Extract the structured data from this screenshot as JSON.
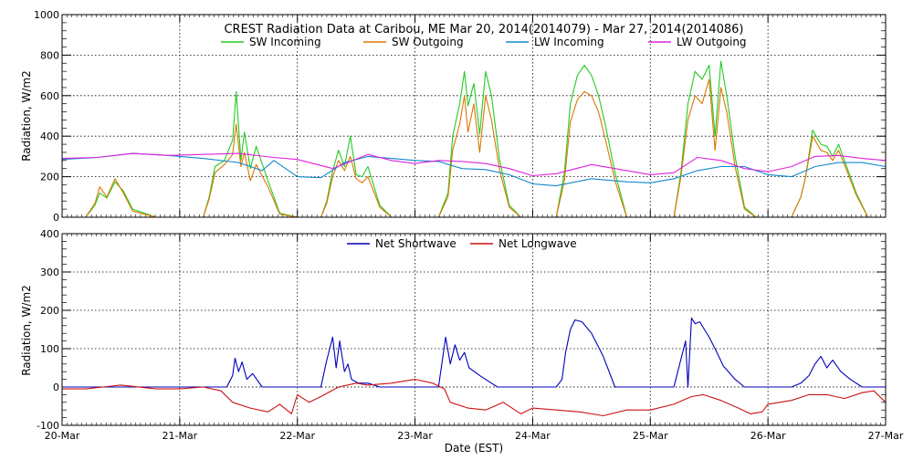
{
  "chart_data": [
    {
      "type": "line",
      "title": "CREST Radiation Data at Caribou, ME   Mar 20, 2014(2014079) - Mar 27, 2014(2014086)",
      "ylabel": "Radiation, W/m2",
      "xlim": [
        0,
        7
      ],
      "ylim": [
        0,
        1000
      ],
      "yticks": [
        0,
        200,
        400,
        600,
        800,
        1000
      ],
      "grid": true,
      "legend_placement": "top",
      "series": [
        {
          "name": "SW Incoming",
          "color": "#22cc22",
          "x": [
            0,
            0.2,
            0.28,
            0.32,
            0.38,
            0.45,
            0.52,
            0.6,
            0.8,
            1,
            1.2,
            1.25,
            1.3,
            1.38,
            1.45,
            1.48,
            1.52,
            1.55,
            1.6,
            1.65,
            1.75,
            1.85,
            2,
            2.2,
            2.25,
            2.3,
            2.35,
            2.4,
            2.45,
            2.5,
            2.55,
            2.6,
            2.7,
            2.8,
            3,
            3.2,
            3.28,
            3.32,
            3.38,
            3.42,
            3.45,
            3.5,
            3.55,
            3.6,
            3.65,
            3.72,
            3.8,
            3.9,
            4,
            4.2,
            4.27,
            4.32,
            4.38,
            4.44,
            4.5,
            4.56,
            4.62,
            4.7,
            4.8,
            5,
            5.2,
            5.26,
            5.32,
            5.38,
            5.44,
            5.5,
            5.55,
            5.6,
            5.65,
            5.72,
            5.8,
            5.9,
            6,
            6.2,
            6.28,
            6.32,
            6.38,
            6.45,
            6.5,
            6.55,
            6.6,
            6.65,
            6.75,
            6.85,
            7
          ],
          "y": [
            0,
            0,
            60,
            120,
            95,
            175,
            130,
            40,
            0,
            0,
            0,
            100,
            250,
            280,
            380,
            620,
            280,
            420,
            240,
            350,
            180,
            20,
            0,
            0,
            80,
            230,
            330,
            250,
            400,
            210,
            200,
            250,
            60,
            0,
            0,
            0,
            120,
            400,
            560,
            720,
            550,
            660,
            410,
            720,
            600,
            280,
            60,
            0,
            0,
            0,
            220,
            560,
            700,
            750,
            700,
            600,
            450,
            220,
            0,
            0,
            0,
            220,
            560,
            720,
            680,
            750,
            400,
            770,
            600,
            300,
            50,
            0,
            0,
            0,
            100,
            200,
            430,
            360,
            350,
            300,
            360,
            280,
            120,
            0,
            0
          ]
        },
        {
          "name": "SW Outgoing",
          "color": "#dd7700",
          "x": [
            0,
            0.2,
            0.28,
            0.32,
            0.38,
            0.45,
            0.52,
            0.6,
            0.8,
            1,
            1.2,
            1.25,
            1.3,
            1.38,
            1.45,
            1.48,
            1.52,
            1.55,
            1.6,
            1.65,
            1.75,
            1.85,
            2,
            2.2,
            2.25,
            2.3,
            2.35,
            2.4,
            2.45,
            2.5,
            2.55,
            2.6,
            2.7,
            2.8,
            3,
            3.2,
            3.28,
            3.32,
            3.38,
            3.42,
            3.45,
            3.5,
            3.55,
            3.6,
            3.65,
            3.72,
            3.8,
            3.9,
            4,
            4.2,
            4.27,
            4.32,
            4.38,
            4.44,
            4.5,
            4.56,
            4.62,
            4.7,
            4.8,
            5,
            5.2,
            5.26,
            5.32,
            5.38,
            5.44,
            5.5,
            5.55,
            5.6,
            5.65,
            5.72,
            5.8,
            5.9,
            6,
            6.2,
            6.28,
            6.32,
            6.38,
            6.45,
            6.5,
            6.55,
            6.6,
            6.65,
            6.75,
            6.85,
            7
          ],
          "y": [
            0,
            0,
            70,
            150,
            100,
            190,
            120,
            30,
            0,
            0,
            0,
            90,
            220,
            260,
            310,
            460,
            250,
            320,
            180,
            260,
            150,
            15,
            0,
            0,
            70,
            200,
            280,
            230,
            300,
            190,
            170,
            200,
            50,
            0,
            0,
            0,
            100,
            330,
            460,
            600,
            420,
            560,
            320,
            600,
            480,
            230,
            50,
            0,
            0,
            0,
            180,
            470,
            580,
            620,
            600,
            520,
            380,
            180,
            0,
            0,
            0,
            200,
            480,
            600,
            560,
            680,
            330,
            640,
            520,
            250,
            40,
            0,
            0,
            0,
            100,
            200,
            400,
            330,
            320,
            280,
            330,
            260,
            110,
            0,
            0
          ]
        },
        {
          "name": "LW Incoming",
          "color": "#1188cc",
          "x": [
            0,
            0.3,
            0.6,
            0.9,
            1.2,
            1.5,
            1.7,
            1.8,
            2,
            2.2,
            2.4,
            2.6,
            2.8,
            3,
            3.2,
            3.4,
            3.6,
            3.8,
            4,
            4.2,
            4.5,
            4.8,
            5,
            5.2,
            5.4,
            5.6,
            5.8,
            6,
            6.2,
            6.4,
            6.6,
            6.8,
            7
          ],
          "y": [
            285,
            295,
            315,
            305,
            290,
            270,
            230,
            280,
            200,
            195,
            270,
            300,
            290,
            280,
            275,
            240,
            235,
            210,
            165,
            155,
            190,
            175,
            170,
            190,
            230,
            250,
            250,
            210,
            200,
            250,
            270,
            270,
            250
          ]
        },
        {
          "name": "LW Outgoing",
          "color": "#dd22dd",
          "x": [
            0,
            0.3,
            0.6,
            0.9,
            1.2,
            1.5,
            1.8,
            2,
            2.3,
            2.6,
            2.8,
            3,
            3.2,
            3.4,
            3.6,
            3.8,
            4,
            4.2,
            4.5,
            4.8,
            5,
            5.2,
            5.4,
            5.6,
            5.8,
            6,
            6.2,
            6.4,
            6.6,
            6.8,
            7
          ],
          "y": [
            290,
            295,
            315,
            305,
            310,
            315,
            295,
            285,
            240,
            310,
            280,
            265,
            280,
            275,
            265,
            240,
            205,
            215,
            260,
            230,
            210,
            220,
            295,
            280,
            240,
            225,
            250,
            300,
            305,
            290,
            280
          ]
        }
      ]
    },
    {
      "type": "line",
      "xlabel": "Date (EST)",
      "ylabel": "Radiation, W/m2",
      "xlim": [
        0,
        7
      ],
      "ylim": [
        -100,
        400
      ],
      "yticks": [
        -100,
        0,
        100,
        200,
        300,
        400
      ],
      "categories": [
        "20-Mar",
        "21-Mar",
        "22-Mar",
        "23-Mar",
        "24-Mar",
        "25-Mar",
        "26-Mar",
        "27-Mar"
      ],
      "grid": true,
      "legend_placement": "top",
      "series": [
        {
          "name": "Net Shortwave",
          "color": "#0000bb",
          "x": [
            0,
            1.4,
            1.45,
            1.47,
            1.5,
            1.53,
            1.57,
            1.62,
            1.7,
            2.2,
            2.25,
            2.3,
            2.33,
            2.36,
            2.4,
            2.43,
            2.46,
            2.52,
            2.6,
            2.7,
            3.2,
            3.26,
            3.3,
            3.34,
            3.38,
            3.42,
            3.46,
            3.55,
            3.65,
            3.7,
            4.2,
            4.25,
            4.28,
            4.32,
            4.36,
            4.42,
            4.5,
            4.6,
            4.7,
            5.2,
            5.25,
            5.3,
            5.32,
            5.35,
            5.38,
            5.42,
            5.5,
            5.55,
            5.62,
            5.72,
            5.8,
            6.2,
            6.28,
            6.35,
            6.4,
            6.45,
            6.5,
            6.55,
            6.62,
            6.7,
            6.8,
            7
          ],
          "y": [
            0,
            0,
            30,
            75,
            40,
            65,
            20,
            35,
            0,
            0,
            70,
            130,
            50,
            120,
            40,
            60,
            20,
            10,
            10,
            0,
            0,
            130,
            60,
            110,
            70,
            90,
            50,
            30,
            10,
            0,
            0,
            20,
            90,
            150,
            175,
            170,
            140,
            80,
            0,
            0,
            60,
            120,
            0,
            180,
            165,
            170,
            130,
            100,
            55,
            20,
            0,
            0,
            10,
            30,
            60,
            80,
            50,
            70,
            40,
            20,
            0,
            0
          ]
        },
        {
          "name": "Net Longwave",
          "color": "#cc1111",
          "x": [
            0,
            0.2,
            0.5,
            0.8,
            1,
            1.2,
            1.35,
            1.45,
            1.6,
            1.75,
            1.85,
            1.95,
            2,
            2.1,
            2.2,
            2.35,
            2.5,
            2.6,
            2.8,
            3,
            3.15,
            3.25,
            3.3,
            3.45,
            3.6,
            3.75,
            3.9,
            4,
            4.2,
            4.4,
            4.6,
            4.8,
            5,
            5.2,
            5.35,
            5.45,
            5.6,
            5.75,
            5.85,
            5.95,
            6,
            6.2,
            6.35,
            6.5,
            6.65,
            6.8,
            6.9,
            7
          ],
          "y": [
            -5,
            -5,
            5,
            -5,
            -5,
            0,
            -10,
            -40,
            -55,
            -65,
            -45,
            -70,
            -20,
            -40,
            -25,
            0,
            10,
            5,
            10,
            20,
            10,
            -5,
            -40,
            -55,
            -60,
            -40,
            -70,
            -55,
            -60,
            -65,
            -75,
            -60,
            -60,
            -45,
            -25,
            -20,
            -35,
            -55,
            -70,
            -65,
            -45,
            -35,
            -20,
            -20,
            -30,
            -15,
            -10,
            -40
          ]
        }
      ]
    }
  ],
  "xaxis": {
    "tick_labels": [
      "20-Mar",
      "21-Mar",
      "22-Mar",
      "23-Mar",
      "24-Mar",
      "25-Mar",
      "26-Mar",
      "27-Mar"
    ]
  }
}
